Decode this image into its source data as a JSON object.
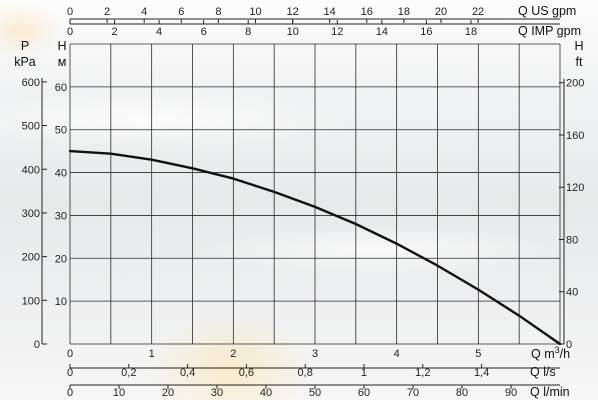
{
  "chart_data": {
    "type": "line",
    "series": [
      {
        "x": [
          0,
          0.5,
          1,
          1.5,
          2,
          2.5,
          3,
          3.5,
          4,
          4.5,
          5,
          5.5,
          6
        ],
        "values": [
          45,
          44.4,
          43,
          41,
          38.6,
          35.5,
          32,
          28,
          23.4,
          18.3,
          12.7,
          6.6,
          0
        ]
      }
    ],
    "x_primary": {
      "label_html": "Q m³/h",
      "label_text": "Q m",
      "label_sup": "3",
      "label_tail": "/h",
      "range": [
        0,
        6
      ],
      "ticks": [
        0,
        1,
        2,
        3,
        4,
        5
      ]
    },
    "y_head_m": {
      "label_line1": "H",
      "label_line2": "м",
      "range": [
        0,
        70
      ],
      "ticks": [
        10,
        20,
        30,
        40,
        50,
        60
      ]
    },
    "y_pressure_kpa": {
      "label_line1": "P",
      "label_line2": "kPa",
      "range": [
        0,
        686.7
      ],
      "ticks": [
        0,
        100,
        200,
        300,
        400,
        500,
        600
      ]
    },
    "y_head_ft": {
      "label_line1": "H",
      "label_line2": "ft",
      "range": [
        0,
        229.66
      ],
      "ticks": [
        0,
        40,
        80,
        120,
        160,
        200
      ]
    },
    "top_axis_us_gpm": {
      "label": "Q US gpm",
      "ticks": [
        0,
        2,
        4,
        6,
        8,
        10,
        12,
        14,
        16,
        18,
        20,
        22
      ],
      "per_m3h": 4.4029
    },
    "top_axis_imp_gpm": {
      "label": "Q IMP gpm",
      "ticks": [
        0,
        2,
        4,
        6,
        8,
        10,
        12,
        14,
        16,
        18
      ],
      "per_m3h": 3.6662
    },
    "bottom_axis_ls": {
      "label": "Q l/s",
      "ticks": [
        "0",
        "0,2",
        "0,4",
        "0,6",
        "0,8",
        "1",
        "1,2",
        "1,4"
      ],
      "tick_values": [
        0,
        0.2,
        0.4,
        0.6,
        0.8,
        1,
        1.2,
        1.4
      ],
      "per_m3h": 0.27778
    },
    "bottom_axis_lmin": {
      "label": "Q l/min",
      "ticks": [
        0,
        10,
        20,
        30,
        40,
        50,
        60,
        70,
        80,
        90
      ],
      "per_m3h": 16.6667
    },
    "grid": true,
    "legend": "none",
    "colors": {
      "curve": "#111111",
      "grid": "#2b2b2b"
    }
  }
}
